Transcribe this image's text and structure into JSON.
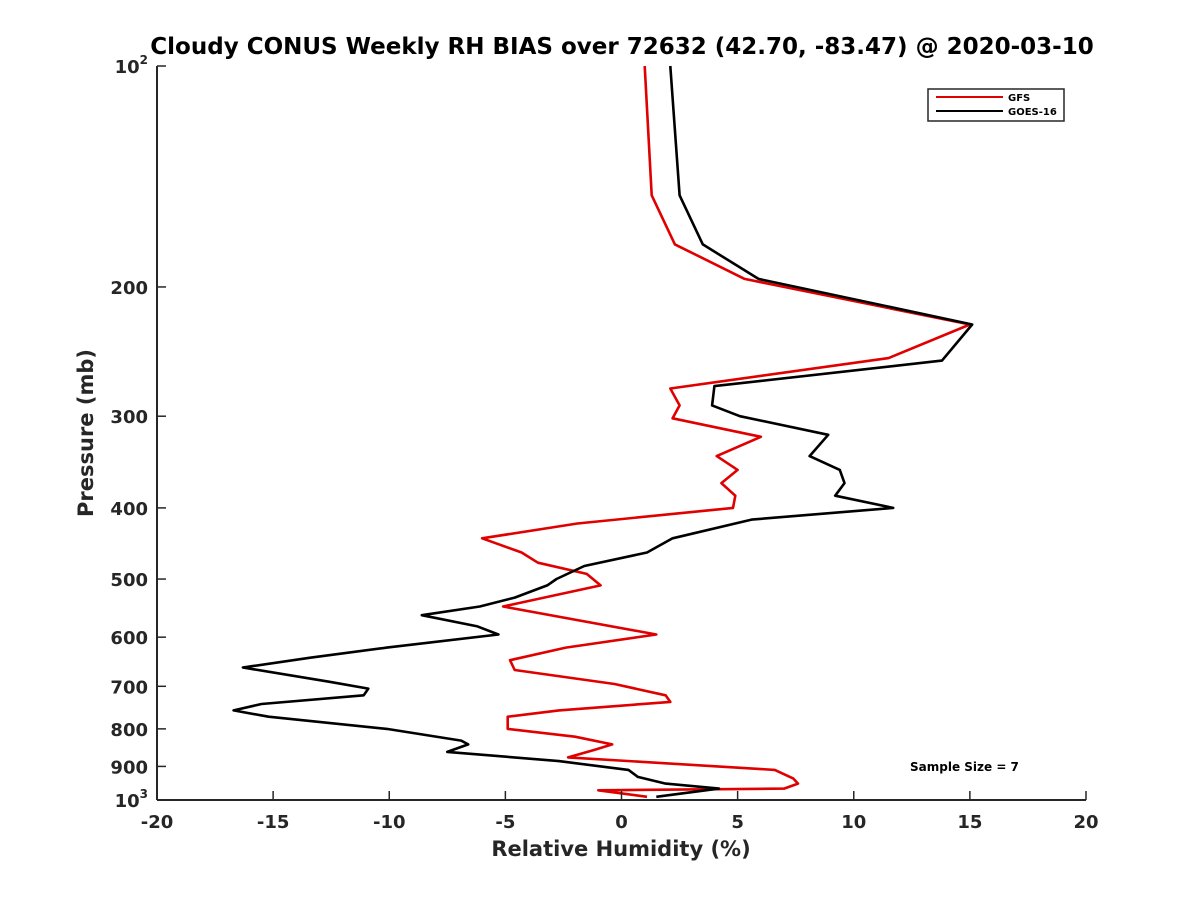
{
  "chart_data": {
    "type": "line",
    "title": "Cloudy CONUS Weekly RH BIAS over 72632 (42.70, -83.47) @ 2020-03-10",
    "xlabel": "Relative Humidity (%)",
    "ylabel": "Pressure (mb)",
    "xlim": [
      -20,
      20
    ],
    "ylim": [
      100,
      1000
    ],
    "yscale": "log",
    "y_reversed": true,
    "grid": false,
    "legend_position": "top-right",
    "x_ticks": [
      "-20",
      "-15",
      "-10",
      "-5",
      "0",
      "5",
      "10",
      "15",
      "20"
    ],
    "y_ticks": [
      {
        "value": 100,
        "label": "10",
        "exp": "2"
      },
      {
        "value": 200,
        "label": "200"
      },
      {
        "value": 300,
        "label": "300"
      },
      {
        "value": 400,
        "label": "400"
      },
      {
        "value": 500,
        "label": "500"
      },
      {
        "value": 600,
        "label": "600"
      },
      {
        "value": 700,
        "label": "700"
      },
      {
        "value": 800,
        "label": "800"
      },
      {
        "value": 900,
        "label": "900"
      },
      {
        "value": 1000,
        "label": "10",
        "exp": "3"
      }
    ],
    "annotation": "Sample Size = 7",
    "series": [
      {
        "name": "GFS",
        "color": "#e00000",
        "points": [
          [
            1.0,
            100
          ],
          [
            1.3,
            150
          ],
          [
            2.3,
            175
          ],
          [
            5.3,
            195
          ],
          [
            15.0,
            225
          ],
          [
            11.5,
            250
          ],
          [
            2.1,
            275
          ],
          [
            2.5,
            290
          ],
          [
            2.2,
            302
          ],
          [
            6.0,
            320
          ],
          [
            4.1,
            340
          ],
          [
            5.0,
            355
          ],
          [
            4.3,
            370
          ],
          [
            4.9,
            385
          ],
          [
            4.8,
            400
          ],
          [
            -1.9,
            420
          ],
          [
            -6.0,
            440
          ],
          [
            -4.3,
            460
          ],
          [
            -3.6,
            475
          ],
          [
            -1.5,
            492
          ],
          [
            -0.9,
            510
          ],
          [
            -5.1,
            545
          ],
          [
            1.5,
            595
          ],
          [
            -2.4,
            620
          ],
          [
            -4.8,
            645
          ],
          [
            -4.6,
            665
          ],
          [
            -0.3,
            695
          ],
          [
            1.9,
            720
          ],
          [
            2.1,
            735
          ],
          [
            -2.7,
            755
          ],
          [
            -4.9,
            770
          ],
          [
            -4.9,
            800
          ],
          [
            -2.0,
            820
          ],
          [
            -0.4,
            840
          ],
          [
            -1.2,
            855
          ],
          [
            -2.3,
            875
          ],
          [
            6.6,
            910
          ],
          [
            7.4,
            935
          ],
          [
            7.6,
            950
          ],
          [
            7.0,
            965
          ],
          [
            -1.0,
            970
          ],
          [
            1.1,
            990
          ]
        ]
      },
      {
        "name": "GOES-16",
        "color": "#000000",
        "points": [
          [
            2.1,
            100
          ],
          [
            2.5,
            150
          ],
          [
            3.5,
            175
          ],
          [
            5.9,
            195
          ],
          [
            15.1,
            225
          ],
          [
            13.8,
            252
          ],
          [
            4.0,
            273
          ],
          [
            3.9,
            290
          ],
          [
            5.1,
            300
          ],
          [
            8.9,
            318
          ],
          [
            8.1,
            340
          ],
          [
            9.4,
            355
          ],
          [
            9.6,
            370
          ],
          [
            9.2,
            385
          ],
          [
            11.7,
            400
          ],
          [
            5.6,
            415
          ],
          [
            2.2,
            440
          ],
          [
            1.1,
            460
          ],
          [
            -1.6,
            480
          ],
          [
            -2.8,
            500
          ],
          [
            -3.2,
            510
          ],
          [
            -4.6,
            530
          ],
          [
            -6.1,
            545
          ],
          [
            -8.6,
            560
          ],
          [
            -6.2,
            580
          ],
          [
            -5.3,
            595
          ],
          [
            -10.1,
            620
          ],
          [
            -13.4,
            640
          ],
          [
            -16.3,
            660
          ],
          [
            -12.6,
            690
          ],
          [
            -10.9,
            705
          ],
          [
            -11.1,
            720
          ],
          [
            -15.5,
            740
          ],
          [
            -16.7,
            755
          ],
          [
            -15.2,
            770
          ],
          [
            -10.1,
            800
          ],
          [
            -6.9,
            830
          ],
          [
            -6.6,
            840
          ],
          [
            -7.5,
            860
          ],
          [
            -2.7,
            885
          ],
          [
            0.3,
            910
          ],
          [
            0.7,
            930
          ],
          [
            1.9,
            950
          ],
          [
            4.2,
            965
          ],
          [
            1.5,
            990
          ]
        ]
      }
    ]
  }
}
